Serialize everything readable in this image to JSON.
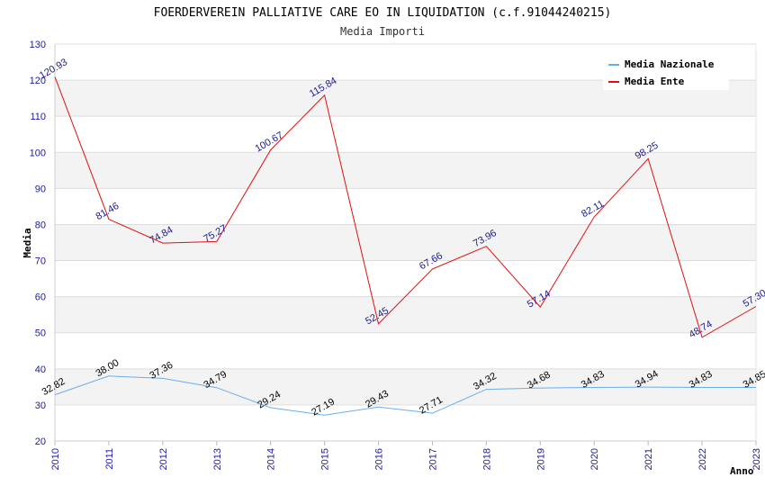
{
  "chart_data": {
    "type": "line",
    "title": "FOERDERVEREIN PALLIATIVE CARE EO IN LIQUIDATION (c.f.91044240215)",
    "subtitle": "Media Importi",
    "xlabel": "Anno",
    "ylabel": "Media",
    "ylim": [
      20,
      130
    ],
    "yticks": [
      20,
      30,
      40,
      50,
      60,
      70,
      80,
      90,
      100,
      110,
      120,
      130
    ],
    "grid": true,
    "legend_position": "top-right",
    "x": [
      "2010",
      "2011",
      "2012",
      "2013",
      "2014",
      "2015",
      "2016",
      "2017",
      "2018",
      "2019",
      "2020",
      "2021",
      "2022",
      "2023"
    ],
    "series": [
      {
        "name": "Media Nazionale",
        "color": "#6aaee8",
        "label_color": "#000000",
        "values": [
          32.82,
          38.0,
          37.36,
          34.79,
          29.24,
          27.19,
          29.43,
          27.71,
          34.32,
          34.68,
          34.83,
          34.94,
          34.83,
          34.85
        ],
        "labels": [
          "32.82",
          "38.00",
          "37.36",
          "34.79",
          "29.24",
          "27.19",
          "29.43",
          "27.71",
          "34.32",
          "34.68",
          "34.83",
          "34.94",
          "34.83",
          "34.85"
        ]
      },
      {
        "name": "Media Ente",
        "color": "#e01010",
        "label_color": "#1a1a8c",
        "values": [
          120.93,
          81.46,
          74.84,
          75.27,
          100.67,
          115.84,
          52.45,
          67.66,
          73.96,
          57.14,
          82.11,
          98.25,
          48.74,
          57.3
        ],
        "labels": [
          "120.93",
          "81.46",
          "74.84",
          "75.27",
          "100.67",
          "115.84",
          "52.45",
          "67.66",
          "73.96",
          "57.14",
          "82.11",
          "98.25",
          "48.74",
          "57.30"
        ]
      }
    ]
  }
}
